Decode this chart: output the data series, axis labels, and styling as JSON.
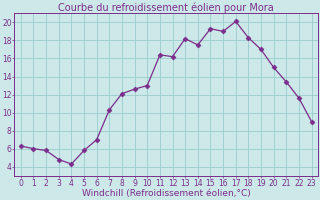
{
  "title": "Courbe du refroidissement éolien pour Mora",
  "xlabel": "Windchill (Refroidissement éolien,°C)",
  "x": [
    0,
    1,
    2,
    3,
    4,
    5,
    6,
    7,
    8,
    9,
    10,
    11,
    12,
    13,
    14,
    15,
    16,
    17,
    18,
    19,
    20,
    21,
    22,
    23
  ],
  "y": [
    6.3,
    6.0,
    5.8,
    4.8,
    4.3,
    5.8,
    7.0,
    10.3,
    12.1,
    12.6,
    13.0,
    16.4,
    16.2,
    18.2,
    17.5,
    19.3,
    19.0,
    20.1,
    18.3,
    17.0,
    15.0,
    13.4,
    11.6,
    9.0
  ],
  "line_color": "#7b2d8b",
  "marker": "D",
  "marker_size": 2.5,
  "bg_color": "#cce8e8",
  "grid_color": "#99cccc",
  "ylim": [
    3,
    21
  ],
  "yticks": [
    4,
    6,
    8,
    10,
    12,
    14,
    16,
    18,
    20
  ],
  "xticks": [
    0,
    1,
    2,
    3,
    4,
    5,
    6,
    7,
    8,
    9,
    10,
    11,
    12,
    13,
    14,
    15,
    16,
    17,
    18,
    19,
    20,
    21,
    22,
    23
  ],
  "tick_fontsize": 5.5,
  "xlabel_fontsize": 6.5,
  "title_fontsize": 7,
  "label_color": "#7b2d8b"
}
